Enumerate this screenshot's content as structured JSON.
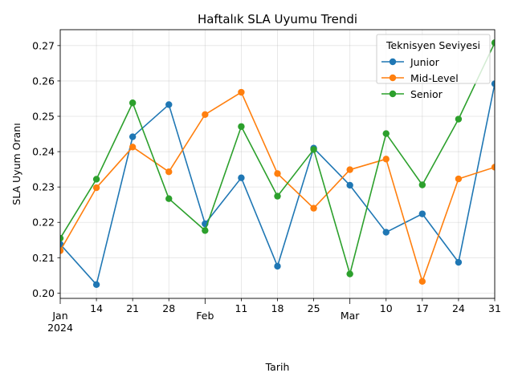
{
  "chart_data": {
    "type": "line",
    "title": "Haftalık SLA Uyumu Trendi",
    "xlabel": "Tarih",
    "ylabel": "SLA Uyum Oranı",
    "x": [
      "2024-01-07",
      "2024-01-14",
      "2024-01-21",
      "2024-01-28",
      "2024-02-04",
      "2024-02-11",
      "2024-02-18",
      "2024-02-25",
      "2024-03-03",
      "2024-03-10",
      "2024-03-17",
      "2024-03-24",
      "2024-03-31"
    ],
    "xlim": [
      "2024-01-07",
      "2024-03-31"
    ],
    "ylim": [
      0.1985,
      0.2745
    ],
    "y_ticks": [
      0.2,
      0.21,
      0.22,
      0.23,
      0.24,
      0.25,
      0.26,
      0.27
    ],
    "y_tick_labels": [
      "0.20",
      "0.21",
      "0.22",
      "0.23",
      "0.24",
      "0.25",
      "0.26",
      "0.27"
    ],
    "x_ticks": [
      {
        "date": "2024-01-07",
        "major": true,
        "lines": [
          "Jan",
          "2024"
        ]
      },
      {
        "date": "2024-01-14",
        "major": false,
        "lines": [
          "14"
        ]
      },
      {
        "date": "2024-01-21",
        "major": false,
        "lines": [
          "21"
        ]
      },
      {
        "date": "2024-01-28",
        "major": false,
        "lines": [
          "28"
        ]
      },
      {
        "date": "2024-02-04",
        "major": true,
        "lines": [
          "Feb"
        ]
      },
      {
        "date": "2024-02-11",
        "major": false,
        "lines": [
          "11"
        ]
      },
      {
        "date": "2024-02-18",
        "major": false,
        "lines": [
          "18"
        ]
      },
      {
        "date": "2024-02-25",
        "major": false,
        "lines": [
          "25"
        ]
      },
      {
        "date": "2024-03-03",
        "major": true,
        "lines": [
          "Mar"
        ]
      },
      {
        "date": "2024-03-10",
        "major": false,
        "lines": [
          "10"
        ]
      },
      {
        "date": "2024-03-17",
        "major": false,
        "lines": [
          "17"
        ]
      },
      {
        "date": "2024-03-24",
        "major": false,
        "lines": [
          "24"
        ]
      },
      {
        "date": "2024-03-31",
        "major": false,
        "lines": [
          "31"
        ]
      }
    ],
    "grid": true,
    "legend": {
      "title": "Teknisyen Seviyesi",
      "placement": "top-right"
    },
    "series": [
      {
        "name": "Junior",
        "color": "#1f77b4",
        "values": [
          0.2138,
          0.2024,
          0.2442,
          0.2533,
          0.2196,
          0.2326,
          0.2076,
          0.241,
          0.2305,
          0.2172,
          0.2224,
          0.2087,
          0.2592
        ]
      },
      {
        "name": "Mid-Level",
        "color": "#ff7f0e",
        "values": [
          0.212,
          0.2298,
          0.2413,
          0.2343,
          0.2505,
          0.2568,
          0.2338,
          0.224,
          0.2349,
          0.2379,
          0.2033,
          0.2323,
          0.2356
        ]
      },
      {
        "name": "Senior",
        "color": "#2ca02c",
        "values": [
          0.2155,
          0.2322,
          0.2538,
          0.2267,
          0.2177,
          0.2471,
          0.2274,
          0.2406,
          0.2054,
          0.2451,
          0.2306,
          0.2492,
          0.2708
        ]
      }
    ]
  }
}
